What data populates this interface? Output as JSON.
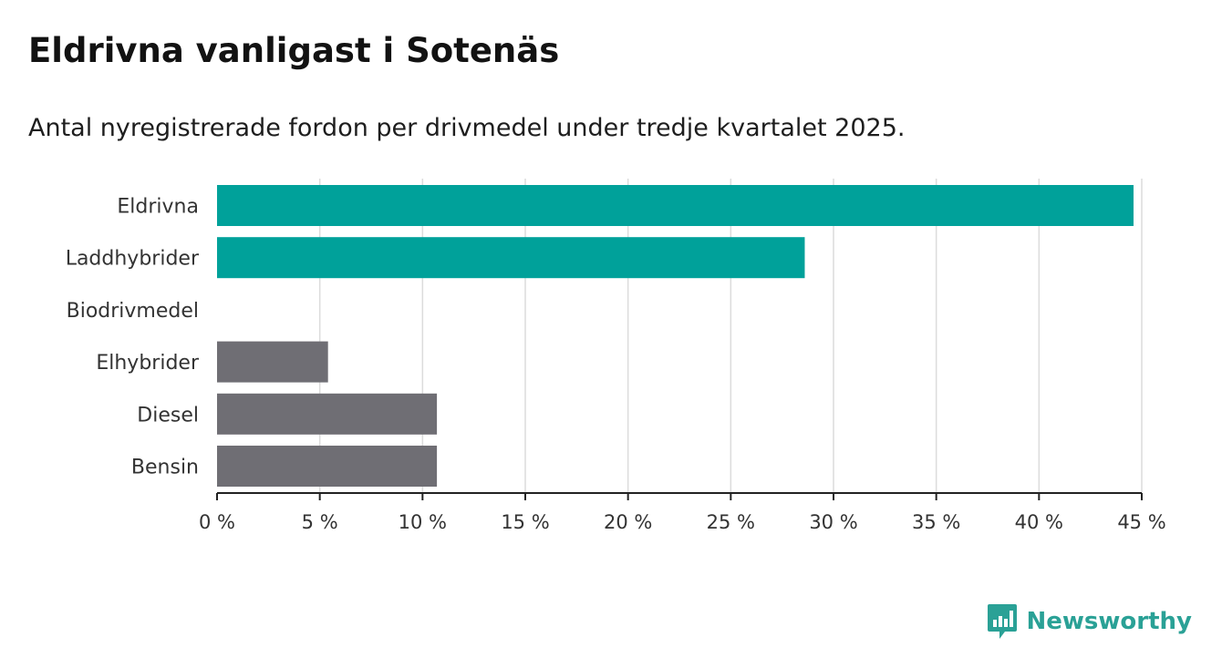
{
  "header": {
    "title": "Eldrivna vanligast i Sotenäs",
    "subtitle": "Antal nyregistrerade fordon per drivmedel under tredje kvartalet 2025."
  },
  "brand": {
    "name": "Newsworthy",
    "color": "#2aa196"
  },
  "chart_data": {
    "type": "bar",
    "orientation": "horizontal",
    "title": "Eldrivna vanligast i Sotenäs",
    "subtitle": "Antal nyregistrerade fordon per drivmedel under tredje kvartalet 2025.",
    "xlabel": "",
    "ylabel": "",
    "xlim": [
      0,
      45
    ],
    "grid": true,
    "categories": [
      "Eldrivna",
      "Laddhybrider",
      "Biodrivmedel",
      "Elhybrider",
      "Diesel",
      "Bensin"
    ],
    "values": [
      44.6,
      28.6,
      0,
      5.4,
      10.7,
      10.7
    ],
    "colors": [
      "#00a19a",
      "#00a19a",
      "#6f6e74",
      "#6f6e74",
      "#6f6e74",
      "#6f6e74"
    ],
    "ticks": [
      0,
      5,
      10,
      15,
      20,
      25,
      30,
      35,
      40,
      45
    ],
    "tick_labels": [
      "0 %",
      "5 %",
      "10 %",
      "15 %",
      "20 %",
      "25 %",
      "30 %",
      "35 %",
      "40 %",
      "45 %"
    ]
  }
}
